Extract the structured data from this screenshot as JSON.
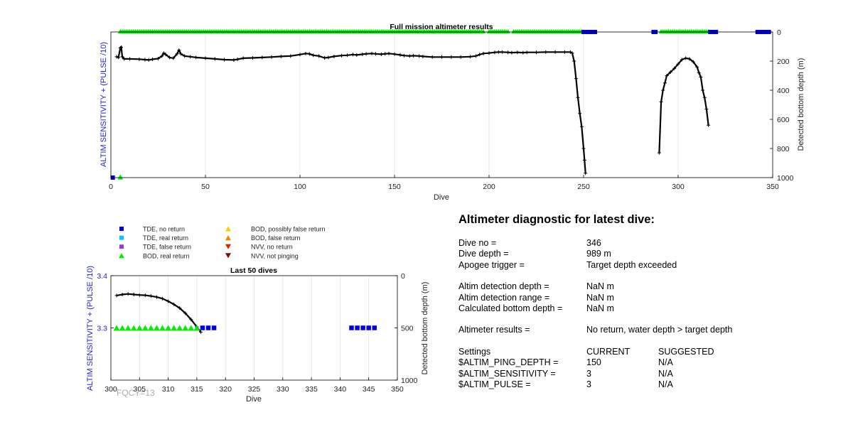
{
  "chart_data": [
    {
      "type": "line",
      "title": "Full mission altimeter results",
      "xlabel": "Dive",
      "ylabel_left": "ALTIM SENSITIVITY + (PULSE /10)",
      "ylabel_right": "Detected bottom depth (m)",
      "xlim": [
        0,
        350
      ],
      "xticks": [
        0,
        50,
        100,
        150,
        200,
        250,
        300,
        350
      ],
      "ylim_right": [
        0,
        1000
      ],
      "yticks_right": [
        0,
        200,
        400,
        600,
        800,
        1000
      ],
      "grid": "vertical",
      "depth_series": [
        {
          "name": "",
          "color": "#000000",
          "points": [
            [
              3,
              170
            ],
            [
              4,
              175
            ],
            [
              5,
              110
            ],
            [
              5.5,
              105
            ],
            [
              6,
              170
            ],
            [
              7,
              185
            ],
            [
              10,
              185
            ],
            [
              15,
              187
            ],
            [
              18,
              190
            ],
            [
              20,
              192
            ],
            [
              22,
              188
            ],
            [
              25,
              183
            ],
            [
              27,
              165
            ],
            [
              28,
              145
            ],
            [
              29,
              155
            ],
            [
              31,
              175
            ],
            [
              33,
              180
            ],
            [
              35,
              150
            ],
            [
              36,
              125
            ],
            [
              37,
              150
            ],
            [
              39,
              165
            ],
            [
              42,
              170
            ],
            [
              45,
              175
            ],
            [
              50,
              180
            ],
            [
              55,
              185
            ],
            [
              60,
              190
            ],
            [
              65,
              192
            ],
            [
              67,
              188
            ],
            [
              70,
              180
            ],
            [
              75,
              178
            ],
            [
              80,
              175
            ],
            [
              85,
              172
            ],
            [
              90,
              168
            ],
            [
              95,
              165
            ],
            [
              100,
              155
            ],
            [
              103,
              148
            ],
            [
              105,
              150
            ],
            [
              107,
              160
            ],
            [
              110,
              165
            ],
            [
              113,
              178
            ],
            [
              115,
              175
            ],
            [
              118,
              168
            ],
            [
              122,
              162
            ],
            [
              125,
              160
            ],
            [
              128,
              155
            ],
            [
              130,
              158
            ],
            [
              133,
              153
            ],
            [
              135,
              150
            ],
            [
              138,
              148
            ],
            [
              140,
              150
            ],
            [
              143,
              153
            ],
            [
              145,
              150
            ],
            [
              147,
              148
            ],
            [
              150,
              152
            ],
            [
              153,
              158
            ],
            [
              155,
              162
            ],
            [
              158,
              165
            ],
            [
              160,
              163
            ],
            [
              163,
              165
            ],
            [
              165,
              168
            ],
            [
              170,
              172
            ],
            [
              175,
              172
            ],
            [
              180,
              172
            ],
            [
              185,
              172
            ],
            [
              190,
              170
            ],
            [
              193,
              165
            ],
            [
              195,
              155
            ],
            [
              197,
              148
            ],
            [
              200,
              145
            ],
            [
              203,
              140
            ],
            [
              205,
              138
            ],
            [
              207,
              138
            ],
            [
              210,
              140
            ],
            [
              212,
              142
            ],
            [
              215,
              140
            ],
            [
              218,
              142
            ],
            [
              220,
              140
            ],
            [
              225,
              140
            ],
            [
              230,
              138
            ],
            [
              235,
              138
            ],
            [
              240,
              138
            ],
            [
              243,
              138
            ],
            [
              244,
              145
            ],
            [
              245,
              200
            ],
            [
              246,
              320
            ],
            [
              247,
              450
            ],
            [
              248,
              560
            ],
            [
              249,
              650
            ],
            [
              250,
              800
            ],
            [
              250.5,
              880
            ],
            [
              251,
              970
            ]
          ]
        },
        {
          "name": "",
          "color": "#000000",
          "points": [
            [
              290,
              830
            ],
            [
              291,
              480
            ],
            [
              292,
              400
            ],
            [
              293,
              350
            ],
            [
              294,
              300
            ],
            [
              296,
              275
            ],
            [
              298,
              250
            ],
            [
              300,
              220
            ],
            [
              302,
              190
            ],
            [
              304,
              180
            ],
            [
              306,
              185
            ],
            [
              308,
              205
            ],
            [
              310,
              240
            ],
            [
              311,
              280
            ],
            [
              312,
              310
            ],
            [
              313,
              400
            ],
            [
              314,
              450
            ],
            [
              315,
              530
            ],
            [
              316,
              640
            ]
          ]
        }
      ],
      "bod_real_return_runs": [
        [
          5,
          32
        ],
        [
          33,
          105
        ],
        [
          106,
          197
        ],
        [
          200,
          210
        ],
        [
          213,
          249
        ],
        [
          291,
          316
        ]
      ],
      "tde_no_return_runs": [
        [
          250,
          256
        ],
        [
          287,
          288
        ],
        [
          317,
          320
        ],
        [
          342,
          348
        ]
      ],
      "sensitivity_markers": [
        {
          "category": "TDE, no return",
          "dive": 1,
          "y": "bottom"
        },
        {
          "category": "BOD, real return",
          "dive": 5,
          "y": "bottom"
        }
      ]
    },
    {
      "type": "line",
      "title": "Last 50 dives",
      "xlabel": "Dive",
      "ylabel_left": "ALTIM SENSITIVITY + (PULSE /10)",
      "ylabel_right": "Detected bottom depth (m)",
      "xlim": [
        300,
        350
      ],
      "xticks": [
        300,
        305,
        310,
        315,
        320,
        325,
        330,
        335,
        340,
        345,
        350
      ],
      "ylim_left": [
        3.2,
        3.4
      ],
      "yticks_left": [
        "3.3",
        "3.4"
      ],
      "ylim_right": [
        0,
        1000
      ],
      "yticks_right": [
        0,
        500,
        1000
      ],
      "grid": "vertical",
      "sensitivity_value": 3.3,
      "depth_series": [
        {
          "name": "",
          "color": "#000000",
          "points": [
            [
              301,
              190
            ],
            [
              302,
              180
            ],
            [
              303,
              175
            ],
            [
              304,
              180
            ],
            [
              305,
              185
            ],
            [
              306,
              188
            ],
            [
              307,
              195
            ],
            [
              308,
              205
            ],
            [
              309,
              220
            ],
            [
              310,
              245
            ],
            [
              311,
              275
            ],
            [
              312,
              310
            ],
            [
              313,
              360
            ],
            [
              314,
              420
            ],
            [
              315,
              490
            ],
            [
              315.7,
              540
            ]
          ]
        }
      ],
      "bod_real_return_dives": [
        301,
        302,
        303,
        304,
        305,
        306,
        307,
        308,
        309,
        310,
        311,
        312,
        313,
        314,
        315
      ],
      "tde_no_return_dives": [
        316,
        317,
        318,
        342,
        343,
        344,
        345,
        346
      ]
    }
  ],
  "fqcy_label": "FQCY=13",
  "legend": {
    "col1": [
      {
        "label": "TDE, no return",
        "color": "#0000dd",
        "marker": "square"
      },
      {
        "label": "TDE, real return",
        "color": "#00ccee",
        "marker": "square"
      },
      {
        "label": "TDE, false return",
        "color": "#8844cc",
        "marker": "square"
      },
      {
        "label": "BOD, real return",
        "color": "#00ee00",
        "marker": "triangle-up"
      }
    ],
    "col2": [
      {
        "label": "BOD, possibly false return",
        "color": "#ffcc00",
        "marker": "triangle-up"
      },
      {
        "label": "BOD, false return",
        "color": "#ee8800",
        "marker": "triangle-up"
      },
      {
        "label": "NVV, no return",
        "color": "#dd2200",
        "marker": "triangle-down"
      },
      {
        "label": "NVV, not pinging",
        "color": "#771100",
        "marker": "triangle-down"
      }
    ]
  },
  "diagnostic": {
    "heading": "Altimeter diagnostic for latest dive:",
    "dive_no_label": "Dive no =",
    "dive_no": "346",
    "dive_depth_label": "Dive depth =",
    "dive_depth": "989 m",
    "apogee_label": "Apogee trigger =",
    "apogee": "Target depth exceeded",
    "detection_depth_label": "Altim detection depth =",
    "detection_depth": "NaN m",
    "detection_range_label": "Altim detection range =",
    "detection_range": "NaN m",
    "bottom_depth_label": "Calculated bottom depth =",
    "bottom_depth": "NaN m",
    "results_label": "Altimeter results =",
    "results": "No return, water depth > target depth",
    "settings_label": "Settings",
    "current_label": "CURRENT",
    "suggested_label": "SUGGESTED",
    "settings": [
      {
        "name": "$ALTIM_PING_DEPTH =",
        "current": "150",
        "suggested": "N/A"
      },
      {
        "name": "$ALTIM_SENSITIVITY =",
        "current": "3",
        "suggested": "N/A"
      },
      {
        "name": "$ALTIM_PULSE =",
        "current": "3",
        "suggested": "N/A"
      }
    ]
  },
  "colors": {
    "axis_label": "#2222cc",
    "grid": "#e2e2e2",
    "depth_line": "#000000"
  }
}
